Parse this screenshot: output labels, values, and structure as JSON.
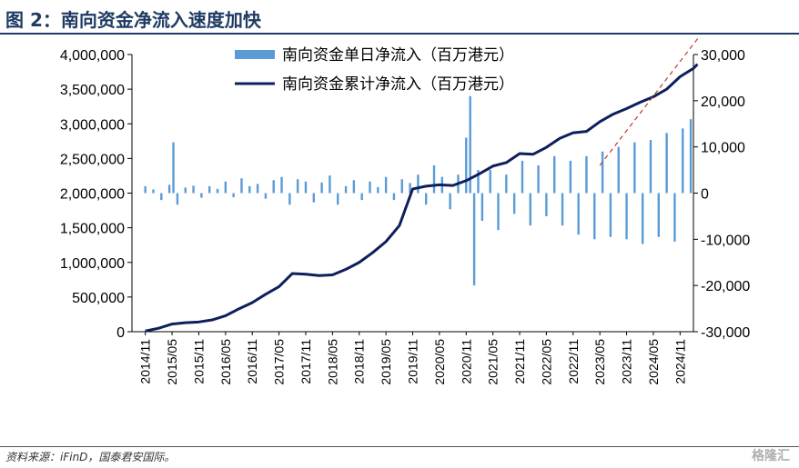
{
  "header": {
    "title": "图 2：南向资金净流入速度加快"
  },
  "footer": {
    "source": "资料来源：iFinD，国泰君安国际。",
    "watermark": "格隆汇"
  },
  "colors": {
    "daily": "#5b9bd5",
    "cumulative": "#0f1f5c",
    "trend": "#c0392b",
    "axis": "#000000"
  },
  "chart_data": {
    "type": "bar+line",
    "legend_position": "top-center",
    "x_tick_labels": [
      "2014/11",
      "2015/05",
      "2015/11",
      "2016/05",
      "2016/11",
      "2017/05",
      "2017/11",
      "2018/05",
      "2018/11",
      "2019/05",
      "2019/11",
      "2020/05",
      "2020/11",
      "2021/05",
      "2021/11",
      "2022/05",
      "2022/11",
      "2023/05",
      "2023/11",
      "2024/05",
      "2024/11"
    ],
    "y_left": {
      "ylim": [
        0,
        4000000
      ],
      "ticks": [
        0,
        500000,
        1000000,
        1500000,
        2000000,
        2500000,
        3000000,
        3500000,
        4000000
      ],
      "tick_labels": [
        "0",
        "500,000",
        "1,000,000",
        "1,500,000",
        "2,000,000",
        "2,500,000",
        "3,000,000",
        "3,500,000",
        "4,000,000"
      ]
    },
    "y_right": {
      "ylim": [
        -30000,
        30000
      ],
      "ticks": [
        -30000,
        -20000,
        -10000,
        0,
        10000,
        20000,
        30000
      ],
      "tick_labels": [
        "-30,000",
        "-20,000",
        "-10,000",
        "0",
        "10,000",
        "20,000",
        "30,000"
      ]
    },
    "series": [
      {
        "name": "南向资金单日净流入（百万港元）",
        "type": "bar",
        "axis": "right",
        "x_index": [
          0,
          0.3,
          0.6,
          0.9,
          1.05,
          1.2,
          1.5,
          1.8,
          2.1,
          2.4,
          2.7,
          3.0,
          3.3,
          3.6,
          3.9,
          4.2,
          4.5,
          4.8,
          5.1,
          5.4,
          5.7,
          6.0,
          6.3,
          6.6,
          6.9,
          7.2,
          7.5,
          7.8,
          8.1,
          8.4,
          8.7,
          9.0,
          9.3,
          9.6,
          9.9,
          10.2,
          10.5,
          10.8,
          11.1,
          11.4,
          11.7,
          12.0,
          12.15,
          12.3,
          12.45,
          12.6,
          12.9,
          13.2,
          13.5,
          13.8,
          14.1,
          14.4,
          14.7,
          15.0,
          15.3,
          15.6,
          15.9,
          16.2,
          16.5,
          16.8,
          17.1,
          17.4,
          17.7,
          18.0,
          18.3,
          18.6,
          18.9,
          19.2,
          19.5,
          19.8,
          20.1,
          20.4
        ],
        "values": [
          1500,
          800,
          -1500,
          1800,
          11000,
          -2500,
          1200,
          1600,
          -1000,
          1500,
          900,
          2500,
          -900,
          3200,
          1500,
          2000,
          -1200,
          2800,
          3500,
          -2500,
          3000,
          2500,
          -2000,
          2300,
          3800,
          -2500,
          1500,
          2800,
          -1500,
          2500,
          1300,
          3500,
          -1500,
          3000,
          2200,
          4000,
          -2500,
          6000,
          3500,
          -3500,
          4000,
          12000,
          21000,
          -20000,
          5000,
          -6000,
          5000,
          -8000,
          4000,
          -4500,
          7000,
          -7000,
          6000,
          -5000,
          8000,
          -7000,
          7000,
          -9000,
          8000,
          -10000,
          9000,
          -9500,
          10000,
          -10000,
          11000,
          -11000,
          11500,
          -9500,
          13000,
          -10500,
          14000,
          16000
        ]
      },
      {
        "name": "南向资金累计净流入（百万港元）",
        "type": "line",
        "axis": "left",
        "x_index": [
          0,
          0.5,
          1.0,
          1.5,
          2.0,
          2.5,
          3.0,
          3.5,
          4.0,
          4.5,
          5.0,
          5.5,
          6.0,
          6.5,
          7.0,
          7.5,
          8.0,
          8.5,
          9.0,
          9.5,
          10.0,
          10.5,
          11.0,
          11.5,
          12.0,
          12.5,
          13.0,
          13.5,
          14.0,
          14.5,
          15.0,
          15.5,
          16.0,
          16.5,
          17.0,
          17.5,
          18.0,
          18.5,
          19.0,
          19.5,
          20.0,
          20.5,
          20.65
        ],
        "values": [
          10000,
          50000,
          110000,
          130000,
          140000,
          170000,
          230000,
          330000,
          420000,
          540000,
          650000,
          840000,
          830000,
          810000,
          820000,
          900000,
          1000000,
          1140000,
          1300000,
          1530000,
          2060000,
          2100000,
          2120000,
          2110000,
          2180000,
          2280000,
          2390000,
          2440000,
          2570000,
          2560000,
          2660000,
          2790000,
          2870000,
          2890000,
          3030000,
          3140000,
          3220000,
          3310000,
          3390000,
          3500000,
          3680000,
          3800000,
          3860000
        ]
      }
    ],
    "trend_line": {
      "x_index": [
        17.0,
        20.7
      ],
      "values": [
        2400000,
        4250000
      ]
    }
  }
}
